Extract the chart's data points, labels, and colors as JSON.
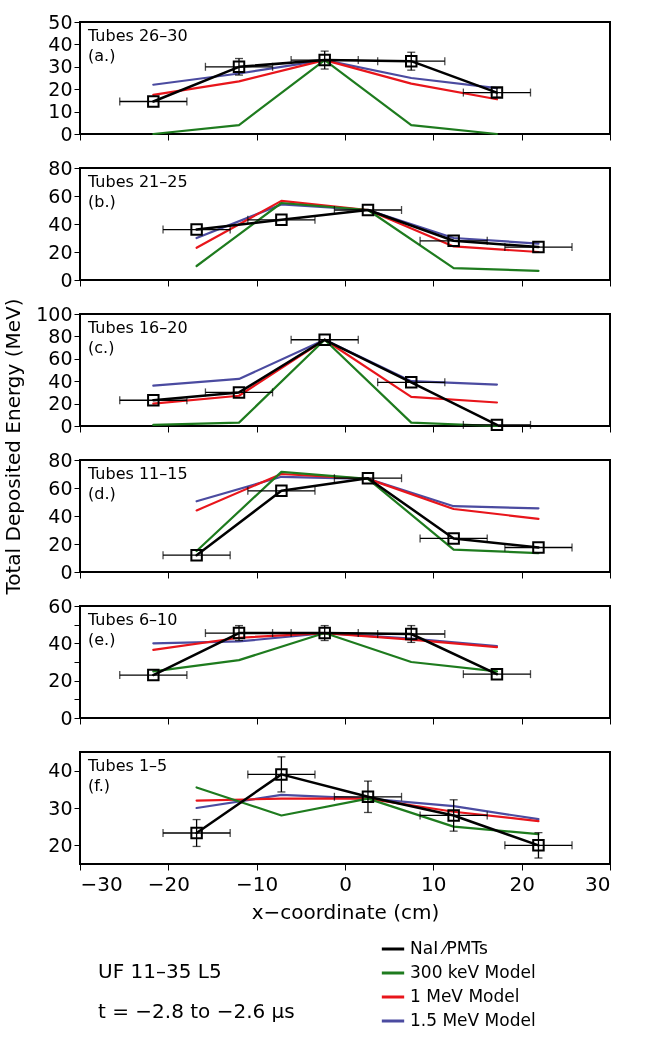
{
  "chart_data": [
    {
      "type": "line",
      "x": [
        -21.7,
        -12,
        -2.3,
        7.5,
        17.2
      ],
      "xlim": [
        -30,
        30
      ],
      "xticks": [
        -30,
        -20,
        -10,
        0,
        10,
        20,
        30
      ],
      "ylim": [
        0,
        50
      ],
      "yticks": [
        0,
        10,
        20,
        30,
        40,
        50
      ],
      "tick_labels": "y",
      "annotations": [
        "Tubes 26–30",
        "(a.)"
      ],
      "series": [
        {
          "color": "#000000",
          "marker": "square",
          "values": [
            14.5,
            30,
            33,
            32.5,
            18.5
          ],
          "errors": [
            null,
            3.7,
            4,
            4,
            2
          ],
          "xerrors": [
            3.8,
            3.8,
            3.8,
            3.8,
            3.8
          ]
        },
        {
          "color": "#1e7b1e",
          "values": [
            0,
            4,
            33,
            4,
            0
          ]
        },
        {
          "color": "#e8151b",
          "values": [
            17.5,
            23.5,
            33,
            22.5,
            15.5
          ]
        },
        {
          "color": "#4b4ba0",
          "values": [
            22,
            27,
            33,
            25,
            20.5
          ]
        }
      ]
    },
    {
      "type": "line",
      "x": [
        -16.8,
        -7.2,
        2.6,
        12.3,
        21.9
      ],
      "xlim": [
        -30,
        30
      ],
      "xticks": [
        -30,
        -20,
        -10,
        0,
        10,
        20,
        30
      ],
      "ylim": [
        0,
        80
      ],
      "yticks": [
        0,
        20,
        40,
        60,
        80
      ],
      "tick_labels": "y",
      "annotations": [
        "Tubes 21–25",
        "(b.)"
      ],
      "series": [
        {
          "color": "#000000",
          "marker": "square",
          "values": [
            36,
            43,
            50,
            28,
            23.5
          ],
          "xerrors": [
            3.8,
            3.8,
            3.8,
            3.8,
            3.8
          ]
        },
        {
          "color": "#1e7b1e",
          "values": [
            10,
            55,
            50,
            8.5,
            6.5
          ]
        },
        {
          "color": "#e8151b",
          "values": [
            23,
            56.5,
            50,
            24,
            20
          ]
        },
        {
          "color": "#4b4ba0",
          "values": [
            30,
            54,
            50,
            30,
            26
          ]
        }
      ]
    },
    {
      "type": "line",
      "x": [
        -21.7,
        -12,
        -2.3,
        7.5,
        17.2
      ],
      "xlim": [
        -30,
        30
      ],
      "xticks": [
        -30,
        -20,
        -10,
        0,
        10,
        20,
        30
      ],
      "ylim": [
        0,
        100
      ],
      "yticks": [
        0,
        20,
        40,
        60,
        80,
        100
      ],
      "tick_labels": "y",
      "ylabel": "Total Deposited Energy (MeV)",
      "annotations": [
        "Tubes 16–20",
        "(c.)"
      ],
      "series": [
        {
          "color": "#000000",
          "marker": "square",
          "values": [
            23,
            30,
            77,
            39,
            1
          ],
          "xerrors": [
            3.8,
            3.8,
            3.8,
            3.8,
            3.8
          ]
        },
        {
          "color": "#1e7b1e",
          "values": [
            1,
            3,
            77,
            3,
            0
          ]
        },
        {
          "color": "#e8151b",
          "values": [
            20,
            27,
            77,
            26,
            21
          ]
        },
        {
          "color": "#4b4ba0",
          "values": [
            36,
            42,
            77,
            40,
            37
          ]
        }
      ]
    },
    {
      "type": "line",
      "x": [
        -16.8,
        -7.2,
        2.6,
        12.3,
        21.9
      ],
      "xlim": [
        -30,
        30
      ],
      "xticks": [
        -30,
        -20,
        -10,
        0,
        10,
        20,
        30
      ],
      "ylim": [
        0,
        80
      ],
      "yticks": [
        0,
        20,
        40,
        60,
        80
      ],
      "tick_labels": "y",
      "annotations": [
        "Tubes 11–15",
        "(d.)"
      ],
      "series": [
        {
          "color": "#000000",
          "marker": "square",
          "values": [
            12,
            58,
            67,
            24,
            17.5
          ],
          "xerrors": [
            3.8,
            3.8,
            3.8,
            3.8,
            3.8
          ]
        },
        {
          "color": "#1e7b1e",
          "values": [
            15,
            71.5,
            66.5,
            16,
            13.5
          ]
        },
        {
          "color": "#e8151b",
          "values": [
            44,
            70,
            66.5,
            45,
            38
          ]
        },
        {
          "color": "#4b4ba0",
          "values": [
            50.5,
            68,
            66.5,
            47,
            45.5
          ]
        }
      ]
    },
    {
      "type": "line",
      "x": [
        -21.7,
        -12,
        -2.3,
        7.5,
        17.2
      ],
      "xlim": [
        -30,
        30
      ],
      "xticks": [
        -30,
        -20,
        -10,
        0,
        10,
        20,
        30
      ],
      "ylim": [
        0,
        60
      ],
      "yticks": [
        0,
        {
          "value": 10,
          "label": null
        },
        20,
        {
          "value": 30,
          "label": null
        },
        40,
        {
          "value": 50,
          "label": null
        },
        60
      ],
      "tick_labels": "y",
      "annotations": [
        "Tubes 6–10",
        "(e.)"
      ],
      "series": [
        {
          "color": "#000000",
          "marker": "square",
          "values": [
            23,
            45.5,
            45.5,
            45,
            23.5
          ],
          "errors": [
            null,
            4,
            4,
            4.5,
            null
          ],
          "xerrors": [
            3.8,
            3.8,
            3.8,
            3.8,
            3.8
          ]
        },
        {
          "color": "#1e7b1e",
          "values": [
            25,
            31,
            45.5,
            30,
            25
          ]
        },
        {
          "color": "#e8151b",
          "values": [
            36.5,
            43,
            45.5,
            42,
            38
          ]
        },
        {
          "color": "#4b4ba0",
          "values": [
            40,
            41,
            45.5,
            42.5,
            38.5
          ]
        }
      ]
    },
    {
      "type": "line",
      "x": [
        -16.8,
        -7.2,
        2.6,
        12.3,
        21.9
      ],
      "xlim": [
        -30,
        30
      ],
      "xticks": [
        -30,
        -20,
        -10,
        0,
        10,
        20,
        30
      ],
      "ylim": [
        15,
        45
      ],
      "yticks": [
        20,
        30,
        40
      ],
      "xlabel": "x−coordinate (cm)",
      "legend": "bottom right",
      "annotations": [
        "Tubes 1–5",
        "(f.)",
        "UF 11–35 L5",
        "t = −2.8 to −2.6  μs"
      ],
      "series": [
        {
          "name": "NaI  ⁄PMTs",
          "color": "#000000",
          "marker": "square",
          "values": [
            23.3,
            39,
            33,
            28,
            20
          ],
          "errors": [
            3.6,
            4.7,
            4.2,
            4.2,
            3.4
          ],
          "xerrors": [
            3.8,
            3.8,
            3.8,
            3.8,
            3.8
          ]
        },
        {
          "name": "300 keV Model",
          "color": "#1e7b1e",
          "values": [
            35.5,
            28,
            32.5,
            25,
            23
          ]
        },
        {
          "name": "1 MeV Model",
          "color": "#e8151b",
          "values": [
            32,
            32.5,
            32.5,
            29,
            26.5
          ]
        },
        {
          "name": "1.5 MeV Model",
          "color": "#4b4ba0",
          "values": [
            30,
            33.5,
            32.5,
            30.5,
            27
          ]
        }
      ]
    }
  ]
}
